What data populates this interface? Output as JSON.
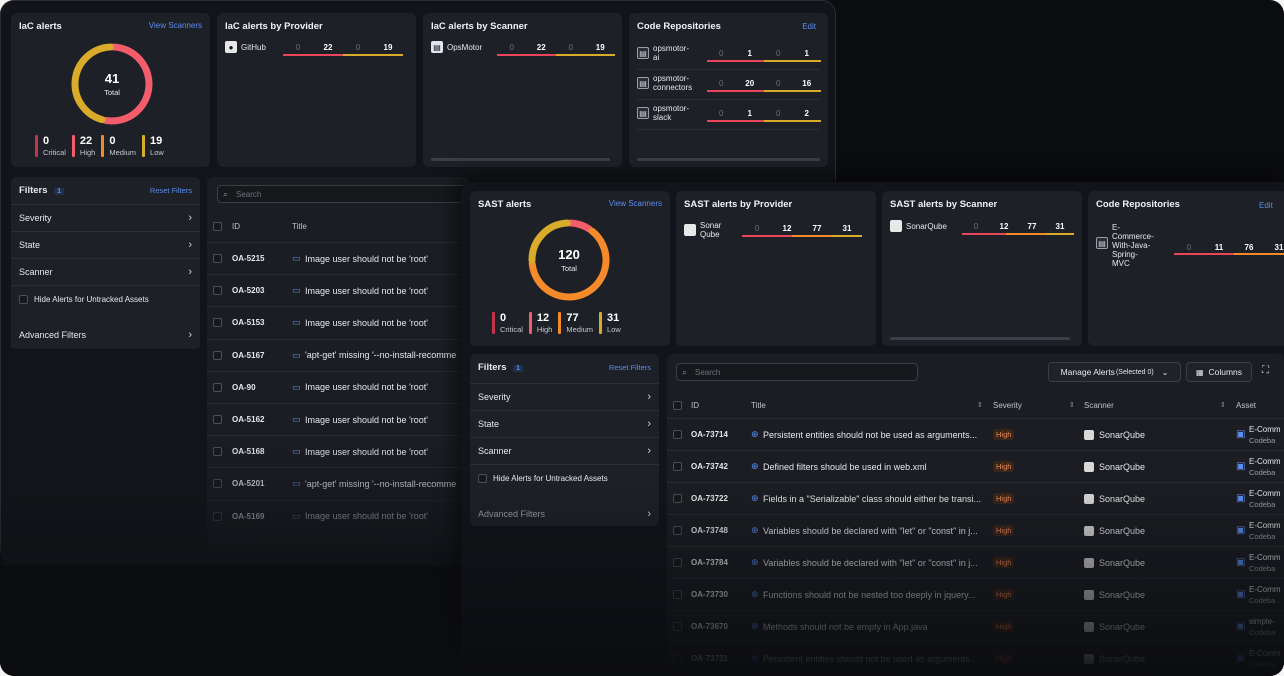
{
  "iac": {
    "summary": {
      "title": "IaC alerts",
      "view_scanners": "View Scanners",
      "total": "41",
      "total_label": "Total",
      "legend": [
        {
          "n": "0",
          "label": "Critical",
          "color": "#c0354a"
        },
        {
          "n": "22",
          "label": "High",
          "color": "#f25c6b"
        },
        {
          "n": "0",
          "label": "Medium",
          "color": "#f58a2a"
        },
        {
          "n": "19",
          "label": "Low",
          "color": "#d9ab2a"
        }
      ]
    },
    "by_provider": {
      "title": "IaC alerts by Provider",
      "rows": [
        {
          "name": "GitHub",
          "vals": [
            "0",
            "22",
            "0",
            "19"
          ]
        }
      ]
    },
    "by_scanner": {
      "title": "IaC alerts by Scanner",
      "rows": [
        {
          "name": "OpsMotor",
          "vals": [
            "0",
            "22",
            "0",
            "19"
          ]
        }
      ]
    },
    "repos": {
      "title": "Code Repositories",
      "edit": "Edit",
      "rows": [
        {
          "l1": "opsmotor-",
          "l2": "ai",
          "vals": [
            "0",
            "1",
            "0",
            "1"
          ]
        },
        {
          "l1": "opsmotor-",
          "l2": "connectors",
          "vals": [
            "0",
            "20",
            "0",
            "16"
          ]
        },
        {
          "l1": "opsmotor-",
          "l2": "slack",
          "vals": [
            "0",
            "1",
            "0",
            "2"
          ]
        }
      ]
    },
    "filters": {
      "title": "Filters",
      "count": "1",
      "reset": "Reset Filters",
      "items": [
        "Severity",
        "State",
        "Scanner"
      ],
      "hide": "Hide Alerts for Untracked Assets",
      "advanced": "Advanced Filters"
    },
    "table": {
      "search": "Search",
      "col_id": "ID",
      "col_title": "Title",
      "rows": [
        {
          "id": "OA-5215",
          "title": "Image user should not be 'root'"
        },
        {
          "id": "OA-5203",
          "title": "Image user should not be 'root'"
        },
        {
          "id": "OA-5153",
          "title": "Image user should not be 'root'"
        },
        {
          "id": "OA-5167",
          "title": "'apt-get' missing '--no-install-recomme"
        },
        {
          "id": "OA-90",
          "title": "Image user should not be 'root'"
        },
        {
          "id": "OA-5162",
          "title": "Image user should not be 'root'"
        },
        {
          "id": "OA-5168",
          "title": "Image user should not be 'root'"
        },
        {
          "id": "OA-5201",
          "title": "'apt-get' missing '--no-install-recomme"
        },
        {
          "id": "OA-5169",
          "title": "Image user should not be 'root'"
        }
      ]
    }
  },
  "sast": {
    "summary": {
      "title": "SAST alerts",
      "view_scanners": "View Scanners",
      "total": "120",
      "total_label": "Total",
      "legend": [
        {
          "n": "0",
          "label": "Critical",
          "color": "#c0354a"
        },
        {
          "n": "12",
          "label": "High",
          "color": "#f25c6b"
        },
        {
          "n": "77",
          "label": "Medium",
          "color": "#f58a2a"
        },
        {
          "n": "31",
          "label": "Low",
          "color": "#d9ab2a"
        }
      ]
    },
    "by_provider": {
      "title": "SAST alerts by Provider",
      "rows": [
        {
          "l1": "Sonar",
          "l2": "Qube",
          "vals": [
            "0",
            "12",
            "77",
            "31"
          ]
        }
      ]
    },
    "by_scanner": {
      "title": "SAST alerts by Scanner",
      "rows": [
        {
          "name": "SonarQube",
          "vals": [
            "0",
            "12",
            "77",
            "31"
          ]
        }
      ]
    },
    "repos": {
      "title": "Code Repositories",
      "edit": "Edit",
      "rows": [
        {
          "lines": [
            "E-",
            "Commerce-",
            "With-Java-",
            "Spring-",
            "MVC"
          ],
          "vals": [
            "0",
            "11",
            "76",
            "31"
          ]
        }
      ]
    },
    "filters": {
      "title": "Filters",
      "count": "1",
      "reset": "Reset Filters",
      "items": [
        "Severity",
        "State",
        "Scanner"
      ],
      "hide": "Hide Alerts for Untracked Assets",
      "advanced": "Advanced Filters"
    },
    "toolbar": {
      "search": "Search",
      "manage": "Manage Alerts",
      "selected": "(Selected 0)",
      "columns": "Columns"
    },
    "table": {
      "col_id": "ID",
      "col_title": "Title",
      "col_severity": "Severity",
      "col_scanner": "Scanner",
      "col_asset": "Asset",
      "rows": [
        {
          "id": "OA-73714",
          "title": "Persistent entities should not be used as arguments...",
          "sev": "High",
          "scanner": "SonarQube",
          "a1": "E-Comm",
          "a2": "Codeba"
        },
        {
          "id": "OA-73742",
          "title": "Defined filters should be used in web.xml",
          "sev": "High",
          "scanner": "SonarQube",
          "a1": "E-Comm",
          "a2": "Codeba"
        },
        {
          "id": "OA-73722",
          "title": "Fields in a \"Serializable\" class should either be transi...",
          "sev": "High",
          "scanner": "SonarQube",
          "a1": "E-Comm",
          "a2": "Codeba"
        },
        {
          "id": "OA-73748",
          "title": "Variables should be declared with \"let\" or \"const\" in j...",
          "sev": "High",
          "scanner": "SonarQube",
          "a1": "E-Comm",
          "a2": "Codeba"
        },
        {
          "id": "OA-73784",
          "title": "Variables should be declared with \"let\" or \"const\" in j...",
          "sev": "High",
          "scanner": "SonarQube",
          "a1": "E-Comm",
          "a2": "Codeba"
        },
        {
          "id": "OA-73730",
          "title": "Functions should not be nested too deeply in jquery...",
          "sev": "High",
          "scanner": "SonarQube",
          "a1": "E-Comm",
          "a2": "Codeba"
        },
        {
          "id": "OA-73670",
          "title": "Methods should not be empty in App.java",
          "sev": "High",
          "scanner": "SonarQube",
          "a1": "simple-",
          "a2": "Codeba"
        },
        {
          "id": "OA-73731",
          "title": "Persistent entities should not be used as arguments...",
          "sev": "High",
          "scanner": "SonarQube",
          "a1": "E-Comm",
          "a2": "Codeba"
        }
      ]
    }
  }
}
